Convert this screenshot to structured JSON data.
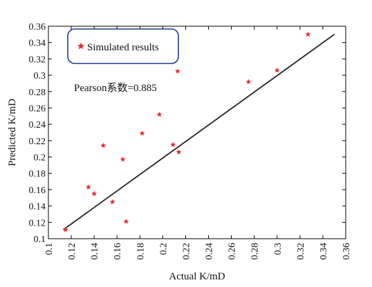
{
  "chart_data": {
    "type": "scatter",
    "xlabel": "Actual K/mD",
    "ylabel": "Predicted K/mD",
    "xlim": [
      0.1,
      0.36
    ],
    "ylim": [
      0.1,
      0.36
    ],
    "x_ticks": [
      "0.1",
      "0.12",
      "0.14",
      "0.16",
      "0.18",
      "0.2",
      "0.22",
      "0.24",
      "0.26",
      "0.28",
      "0.3",
      "0.32",
      "0.34",
      "0.36"
    ],
    "y_ticks": [
      "0.1",
      "0.12",
      "0.14",
      "0.16",
      "0.18",
      "0.2",
      "0.22",
      "0.24",
      "0.26",
      "0.28",
      "0.3",
      "0.32",
      "0.34",
      "0.36"
    ],
    "legend": {
      "label": "Simulated results",
      "position": "top-left",
      "marker": "star",
      "color": "#e8292c"
    },
    "annotation": "Pearson系数=0.885",
    "series": [
      {
        "name": "Simulated results",
        "color": "#e8292c",
        "marker": "star",
        "points": [
          {
            "x": 0.115,
            "y": 0.111
          },
          {
            "x": 0.135,
            "y": 0.163
          },
          {
            "x": 0.14,
            "y": 0.155
          },
          {
            "x": 0.148,
            "y": 0.214
          },
          {
            "x": 0.156,
            "y": 0.145
          },
          {
            "x": 0.165,
            "y": 0.197
          },
          {
            "x": 0.168,
            "y": 0.121
          },
          {
            "x": 0.182,
            "y": 0.229
          },
          {
            "x": 0.197,
            "y": 0.252
          },
          {
            "x": 0.209,
            "y": 0.215
          },
          {
            "x": 0.213,
            "y": 0.305
          },
          {
            "x": 0.214,
            "y": 0.206
          },
          {
            "x": 0.275,
            "y": 0.292
          },
          {
            "x": 0.3,
            "y": 0.306
          },
          {
            "x": 0.327,
            "y": 0.35
          }
        ]
      }
    ],
    "fit_line": {
      "color": "#222222",
      "points": [
        [
          0.113,
          0.111
        ],
        [
          0.35,
          0.35
        ]
      ]
    }
  }
}
